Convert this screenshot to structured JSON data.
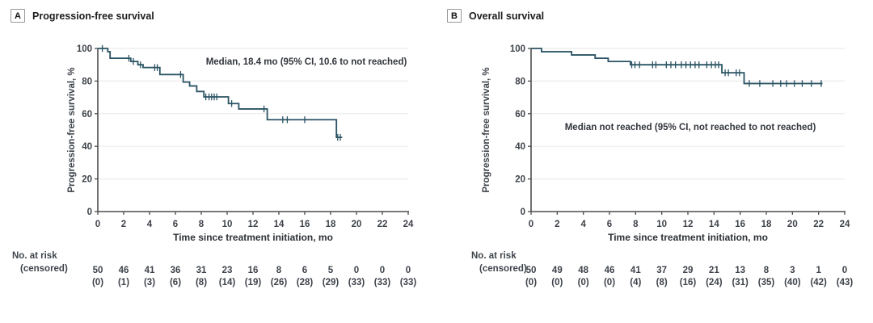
{
  "colors": {
    "curve": "#2a5363",
    "axis": "#4d4d4d",
    "grid": "#ebebeb",
    "tick_text": "#3e434a",
    "title_text": "#1c1c1c",
    "annotation_text": "#32363c"
  },
  "chart_data": [
    {
      "type": "line",
      "subtype": "kaplan-meier-step",
      "panel_label": "A",
      "title": "Progression-free survival",
      "ylabel": "Progression-free survival, %",
      "xlabel": "Time since treatment initiation, mo",
      "xlim": [
        0,
        24
      ],
      "ylim": [
        0,
        100
      ],
      "xticks": [
        0,
        2,
        4,
        6,
        8,
        10,
        12,
        14,
        16,
        18,
        20,
        22,
        24
      ],
      "yticks": [
        0,
        20,
        40,
        60,
        80,
        100
      ],
      "grid": "horizontal",
      "legend": "none",
      "annotation": "Median, 18.4 mo (95% CI, 10.6 to not reached)",
      "annotation_anchor": {
        "x": 16.1,
        "y": 89
      },
      "curve_steps": [
        [
          0,
          100
        ],
        [
          0.77,
          98
        ],
        [
          0.95,
          94
        ],
        [
          2.55,
          92
        ],
        [
          3.1,
          90
        ],
        [
          3.5,
          88.3
        ],
        [
          4.8,
          84
        ],
        [
          6.6,
          79.4
        ],
        [
          7.1,
          77
        ],
        [
          7.65,
          73.6
        ],
        [
          8.2,
          70.3
        ],
        [
          10.1,
          66.2
        ],
        [
          10.9,
          62.9
        ],
        [
          13.1,
          56.3
        ],
        [
          18.45,
          45.5
        ]
      ],
      "curve_end": 18.9,
      "censor_marks": [
        [
          0.35,
          100
        ],
        [
          2.4,
          94
        ],
        [
          2.75,
          92
        ],
        [
          3.3,
          90
        ],
        [
          4.4,
          88.3
        ],
        [
          4.6,
          88.3
        ],
        [
          6.4,
          84
        ],
        [
          8.35,
          70.3
        ],
        [
          8.6,
          70.3
        ],
        [
          8.8,
          70.3
        ],
        [
          9.0,
          70.3
        ],
        [
          9.2,
          70.3
        ],
        [
          10.35,
          66.2
        ],
        [
          12.85,
          62.9
        ],
        [
          14.3,
          56.3
        ],
        [
          14.65,
          56.3
        ],
        [
          16.0,
          56.3
        ],
        [
          18.55,
          45.5
        ],
        [
          18.75,
          45.5
        ]
      ],
      "risk_table": {
        "row1_label": "No. at risk",
        "row2_label": "(censored)",
        "times": [
          0,
          2,
          4,
          6,
          8,
          10,
          12,
          14,
          16,
          18,
          20,
          22,
          24
        ],
        "at_risk": [
          "50",
          "46",
          "41",
          "36",
          "31",
          "23",
          "16",
          "8",
          "6",
          "5",
          "0",
          "0",
          "0"
        ],
        "censored": [
          "(0)",
          "(1)",
          "(3)",
          "(6)",
          "(8)",
          "(14)",
          "(19)",
          "(26)",
          "(28)",
          "(29)",
          "(33)",
          "(33)",
          "(33)"
        ]
      }
    },
    {
      "type": "line",
      "subtype": "kaplan-meier-step",
      "panel_label": "B",
      "title": "Overall survival",
      "ylabel": "Progression-free survival, %",
      "xlabel": "Time since treatment initiation, mo",
      "xlim": [
        0,
        24
      ],
      "ylim": [
        0,
        100
      ],
      "xticks": [
        0,
        2,
        4,
        6,
        8,
        10,
        12,
        14,
        16,
        18,
        20,
        22,
        24
      ],
      "yticks": [
        0,
        20,
        40,
        60,
        80,
        100
      ],
      "grid": "horizontal",
      "legend": "none",
      "annotation": "Median not reached (95% CI, not reached to not reached)",
      "annotation_anchor": {
        "x": 12.2,
        "y": 48.5
      },
      "curve_steps": [
        [
          0,
          100
        ],
        [
          0.8,
          98
        ],
        [
          3.1,
          96
        ],
        [
          4.9,
          94
        ],
        [
          5.9,
          92
        ],
        [
          7.6,
          90
        ],
        [
          14.6,
          85.1
        ],
        [
          16.3,
          78.5
        ]
      ],
      "curve_end": 22.3,
      "censor_marks": [
        [
          7.7,
          90
        ],
        [
          7.95,
          90
        ],
        [
          8.3,
          90
        ],
        [
          9.3,
          90
        ],
        [
          9.55,
          90
        ],
        [
          10.35,
          90
        ],
        [
          10.7,
          90
        ],
        [
          11.05,
          90
        ],
        [
          11.5,
          90
        ],
        [
          11.85,
          90
        ],
        [
          12.2,
          90
        ],
        [
          12.55,
          90
        ],
        [
          12.85,
          90
        ],
        [
          13.45,
          90
        ],
        [
          13.8,
          90
        ],
        [
          14.1,
          90
        ],
        [
          14.35,
          90
        ],
        [
          14.85,
          85.1
        ],
        [
          15.1,
          85.1
        ],
        [
          15.7,
          85.1
        ],
        [
          15.95,
          85.1
        ],
        [
          16.7,
          78.5
        ],
        [
          17.5,
          78.5
        ],
        [
          18.5,
          78.5
        ],
        [
          19.1,
          78.5
        ],
        [
          19.55,
          78.5
        ],
        [
          20.15,
          78.5
        ],
        [
          20.75,
          78.5
        ],
        [
          21.45,
          78.5
        ],
        [
          22.2,
          78.5
        ]
      ],
      "risk_table": {
        "row1_label": "No. at risk",
        "row2_label": "(censored)",
        "times": [
          0,
          2,
          4,
          6,
          8,
          10,
          12,
          14,
          16,
          18,
          20,
          22,
          24
        ],
        "at_risk": [
          "50",
          "49",
          "48",
          "46",
          "41",
          "37",
          "29",
          "21",
          "13",
          "8",
          "3",
          "1",
          "0"
        ],
        "censored": [
          "(0)",
          "(0)",
          "(0)",
          "(0)",
          "(4)",
          "(8)",
          "(16)",
          "(24)",
          "(31)",
          "(35)",
          "(40)",
          "(42)",
          "(43)"
        ]
      }
    }
  ]
}
